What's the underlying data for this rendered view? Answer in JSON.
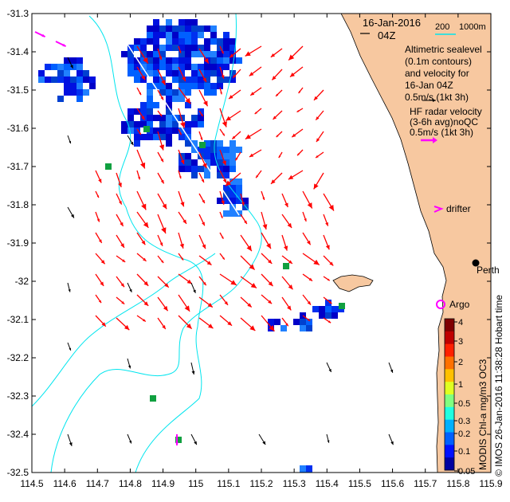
{
  "map": {
    "lon_ticks": [
      "114.5",
      "114.6",
      "114.7",
      "114.8",
      "114.9",
      "115",
      "115.1",
      "115.2",
      "115.3",
      "115.4",
      "115.5",
      "115.6",
      "115.7",
      "115.8",
      "115.9"
    ],
    "lat_ticks": [
      "-31.3",
      "-31.4",
      "-31.5",
      "-31.6",
      "-31.7",
      "-31.8",
      "-31.9",
      "-32",
      "-32.1",
      "-32.2",
      "-32.3",
      "-32.4",
      "-32.5"
    ],
    "lon_range": [
      114.5,
      115.9
    ],
    "lat_range": [
      -32.5,
      -31.3
    ]
  },
  "legend": {
    "date": "16-Jan-2016",
    "time": "04Z",
    "isobath_200": "200",
    "isobath_1000": "1000m",
    "altimetry_lines": [
      "Altimetric sealevel",
      "(0.1m contours)",
      "and velocity for",
      "16-Jan 04Z",
      "0.5m/s (1kt 3h)"
    ],
    "hf_lines": [
      "HF radar velocity",
      "(3-6h avg)noQC",
      "0.5m/s (1kt 3h)"
    ],
    "drifter_label": "drifter",
    "argo_label": "Argo",
    "city_label": "Perth"
  },
  "colorbar": {
    "ticks": [
      "4",
      "3",
      "2",
      "1",
      "0.5",
      "0.3",
      "0.2",
      "0.1",
      "0.05"
    ],
    "title": "MODIS Chl-a mg/m3 OC3",
    "credit": "© IMOS 26-Jan-2016 11:38:28 Hobart time"
  },
  "colors": {
    "land": "#f7c8a0",
    "isobath": "#00e5ee",
    "hf_arrow": "#ff0000",
    "drifter": "#ff00ff",
    "alt_arrow": "#000000",
    "chl_high": "#0000c8",
    "chl_mid": "#0080ff",
    "chl_low": "#10a040"
  }
}
